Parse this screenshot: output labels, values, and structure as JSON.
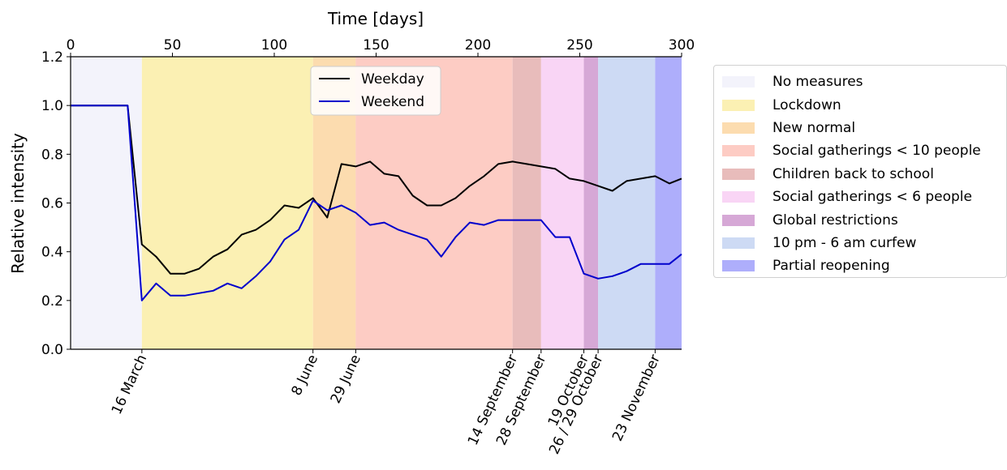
{
  "chart_data": {
    "type": "line",
    "xlabel": "Time [days]",
    "ylabel": "Relative intensity",
    "xlim": [
      0,
      300
    ],
    "ylim": [
      0,
      1.2
    ],
    "x_ticks": [
      "0",
      "50",
      "100",
      "150",
      "200",
      "250",
      "300"
    ],
    "y_ticks": [
      "0.0",
      "0.2",
      "0.4",
      "0.6",
      "0.8",
      "1.0",
      "1.2"
    ],
    "legend_position": "upper-center",
    "series": [
      {
        "name": "Weekday",
        "color": "#000000",
        "x": [
          0,
          28,
          35,
          42,
          49,
          56,
          63,
          70,
          77,
          84,
          91,
          98,
          105,
          112,
          119,
          126,
          133,
          140,
          147,
          154,
          161,
          168,
          175,
          182,
          189,
          196,
          203,
          210,
          217,
          224,
          231,
          238,
          245,
          252,
          259,
          266,
          273,
          280,
          287,
          294,
          300
        ],
        "y": [
          1.0,
          1.0,
          0.43,
          0.38,
          0.31,
          0.31,
          0.33,
          0.38,
          0.41,
          0.47,
          0.49,
          0.53,
          0.59,
          0.58,
          0.62,
          0.54,
          0.76,
          0.75,
          0.77,
          0.72,
          0.71,
          0.63,
          0.59,
          0.59,
          0.62,
          0.67,
          0.71,
          0.76,
          0.77,
          0.76,
          0.75,
          0.74,
          0.7,
          0.69,
          0.67,
          0.65,
          0.69,
          0.7,
          0.71,
          0.68,
          0.7
        ]
      },
      {
        "name": "Weekend",
        "color": "#0000cc",
        "x": [
          0,
          28,
          35,
          42,
          49,
          56,
          63,
          70,
          77,
          84,
          91,
          98,
          105,
          112,
          119,
          126,
          133,
          140,
          147,
          154,
          161,
          168,
          175,
          182,
          189,
          196,
          203,
          210,
          217,
          224,
          231,
          238,
          245,
          252,
          259,
          266,
          273,
          280,
          287,
          294,
          300
        ],
        "y": [
          1.0,
          1.0,
          0.2,
          0.27,
          0.22,
          0.22,
          0.23,
          0.24,
          0.27,
          0.25,
          0.3,
          0.36,
          0.45,
          0.49,
          0.61,
          0.57,
          0.59,
          0.56,
          0.51,
          0.52,
          0.49,
          0.47,
          0.45,
          0.38,
          0.46,
          0.52,
          0.51,
          0.53,
          0.53,
          0.53,
          0.53,
          0.46,
          0.46,
          0.31,
          0.29,
          0.3,
          0.32,
          0.35,
          0.35,
          0.35,
          0.39
        ]
      }
    ],
    "phases": [
      {
        "label": "No measures",
        "start": 0,
        "end": 35,
        "color": "#f3f3fb"
      },
      {
        "label": "Lockdown",
        "start": 35,
        "end": 119,
        "color": "#fbf0b3"
      },
      {
        "label": "New normal",
        "start": 119,
        "end": 140,
        "color": "#fcdcaf"
      },
      {
        "label": "Social gatherings < 10 people",
        "start": 140,
        "end": 217,
        "color": "#fdccc4"
      },
      {
        "label": "Children back to school",
        "start": 217,
        "end": 231,
        "color": "#e8bcbb"
      },
      {
        "label": "Social gatherings < 6 people",
        "start": 231,
        "end": 252,
        "color": "#f9d5f5"
      },
      {
        "label": "Global restrictions",
        "start": 252,
        "end": 259,
        "color": "#d6a8d6"
      },
      {
        "label": "10 pm - 6 am curfew",
        "start": 259,
        "end": 287,
        "color": "#cddaf4"
      },
      {
        "label": "Partial reopening",
        "start": 287,
        "end": 300,
        "color": "#aeaefb"
      }
    ],
    "date_labels": [
      {
        "label": "16 March",
        "x": 35
      },
      {
        "label": "8 June",
        "x": 119
      },
      {
        "label": "29 June",
        "x": 140
      },
      {
        "label": "14 September",
        "x": 217
      },
      {
        "label": "28 September",
        "x": 231
      },
      {
        "label": "19 October",
        "x": 252
      },
      {
        "label": "26 / 29 October",
        "x": 259
      },
      {
        "label": "23 November",
        "x": 287
      }
    ]
  }
}
